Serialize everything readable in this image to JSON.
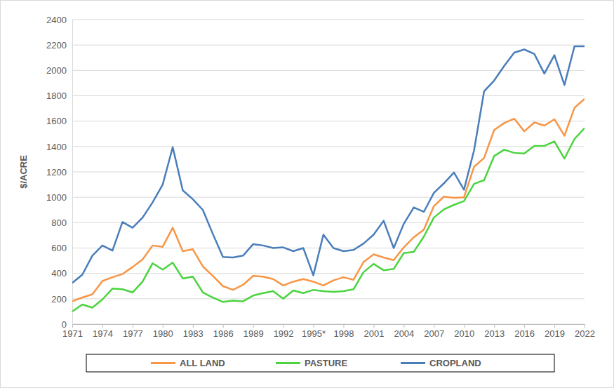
{
  "chart_data": {
    "type": "line",
    "y_label": "$/ACRE",
    "x": [
      1971,
      1972,
      1973,
      1974,
      1975,
      1976,
      1977,
      1978,
      1979,
      1980,
      1981,
      1982,
      1983,
      1984,
      1985,
      1986,
      1987,
      1988,
      1989,
      1990,
      1991,
      1992,
      1993,
      1994,
      1995,
      1996,
      1997,
      1998,
      1999,
      2000,
      2001,
      2002,
      2003,
      2004,
      2005,
      2006,
      2007,
      2008,
      2009,
      2010,
      2011,
      2012,
      2013,
      2014,
      2015,
      2016,
      2017,
      2018,
      2019,
      2020,
      2021,
      2022
    ],
    "series": [
      {
        "name": "ALL LAND",
        "color": "#f79646",
        "values": [
          180,
          210,
          235,
          340,
          370,
          395,
          450,
          510,
          620,
          610,
          760,
          575,
          590,
          455,
          380,
          300,
          270,
          310,
          380,
          375,
          355,
          305,
          335,
          355,
          335,
          305,
          345,
          370,
          350,
          490,
          550,
          525,
          505,
          605,
          685,
          745,
          930,
          1005,
          995,
          1000,
          1240,
          1310,
          1530,
          1585,
          1620,
          1520,
          1590,
          1565,
          1615,
          1485,
          1705,
          1775
        ]
      },
      {
        "name": "PASTURE",
        "color": "#4bd43f",
        "values": [
          100,
          155,
          130,
          195,
          280,
          275,
          250,
          335,
          480,
          430,
          485,
          360,
          375,
          250,
          210,
          175,
          185,
          180,
          225,
          245,
          260,
          200,
          265,
          245,
          270,
          260,
          255,
          260,
          275,
          410,
          475,
          425,
          435,
          560,
          570,
          690,
          840,
          905,
          940,
          970,
          1105,
          1135,
          1325,
          1375,
          1350,
          1345,
          1405,
          1405,
          1440,
          1305,
          1460,
          1545
        ]
      },
      {
        "name": "CROPLAND",
        "color": "#4a7ebb",
        "values": [
          325,
          390,
          540,
          620,
          580,
          805,
          760,
          840,
          960,
          1100,
          1395,
          1055,
          985,
          900,
          710,
          530,
          525,
          540,
          630,
          620,
          600,
          605,
          575,
          600,
          385,
          705,
          600,
          575,
          585,
          635,
          705,
          815,
          600,
          790,
          920,
          885,
          1035,
          1110,
          1195,
          1060,
          1370,
          1835,
          1920,
          2035,
          2140,
          2165,
          2130,
          1975,
          2120,
          1885,
          2190,
          2190
        ]
      }
    ],
    "xlim": [
      1971,
      2022
    ],
    "xticks": [
      1971,
      1974,
      1977,
      1980,
      1983,
      1986,
      1989,
      1992,
      {
        "value": 1995,
        "label": "1995*"
      },
      1998,
      2001,
      2004,
      2007,
      2010,
      2013,
      2016,
      2019,
      2022
    ],
    "ylim": [
      0,
      2400
    ],
    "yticks": [
      0,
      200,
      400,
      600,
      800,
      1000,
      1200,
      1400,
      1600,
      1800,
      2000,
      2200,
      2400
    ],
    "grid": true,
    "legend": "bottom"
  }
}
